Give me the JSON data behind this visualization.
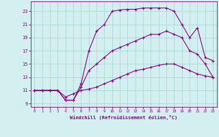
{
  "xlabel": "Windchill (Refroidissement éolien,°C)",
  "xlim": [
    -0.5,
    23.5
  ],
  "ylim": [
    8.5,
    24.5
  ],
  "yticks": [
    9,
    11,
    13,
    15,
    17,
    19,
    21,
    23
  ],
  "xticks": [
    0,
    1,
    2,
    3,
    4,
    5,
    6,
    7,
    8,
    9,
    10,
    11,
    12,
    13,
    14,
    15,
    16,
    17,
    18,
    19,
    20,
    21,
    22,
    23
  ],
  "bg_color": "#d4efef",
  "grid_color": "#a8d8d8",
  "line_color": "#880088",
  "line1_x": [
    0,
    1,
    2,
    3,
    4,
    5,
    6,
    7,
    8,
    9,
    10,
    11,
    12,
    13,
    14,
    15,
    16,
    17,
    18,
    19,
    20,
    21,
    22,
    23
  ],
  "line1_y": [
    11,
    11,
    11,
    11,
    10,
    10.5,
    11,
    11.2,
    11.5,
    12,
    12.5,
    13,
    13.5,
    14,
    14.2,
    14.5,
    14.8,
    15,
    15,
    14.5,
    14,
    13.5,
    13.2,
    13
  ],
  "line2_x": [
    0,
    1,
    2,
    3,
    4,
    5,
    6,
    7,
    8,
    9,
    10,
    11,
    12,
    13,
    14,
    15,
    16,
    17,
    18,
    19,
    20,
    21,
    22,
    23
  ],
  "line2_y": [
    11,
    11,
    11,
    11,
    9.5,
    9.5,
    12,
    17,
    20,
    21,
    23,
    23.2,
    23.3,
    23.3,
    23.5,
    23.5,
    23.5,
    23.5,
    23,
    21,
    19,
    20.5,
    16,
    15.5
  ],
  "line3_x": [
    0,
    1,
    2,
    3,
    4,
    5,
    6,
    7,
    8,
    9,
    10,
    11,
    12,
    13,
    14,
    15,
    16,
    17,
    18,
    19,
    20,
    21,
    22,
    23
  ],
  "line3_y": [
    11,
    11,
    11,
    11,
    9.5,
    9.5,
    11.5,
    14,
    15,
    16,
    17,
    17.5,
    18,
    18.5,
    19,
    19.5,
    19.5,
    20,
    19.5,
    19,
    17,
    16.5,
    15,
    13
  ]
}
